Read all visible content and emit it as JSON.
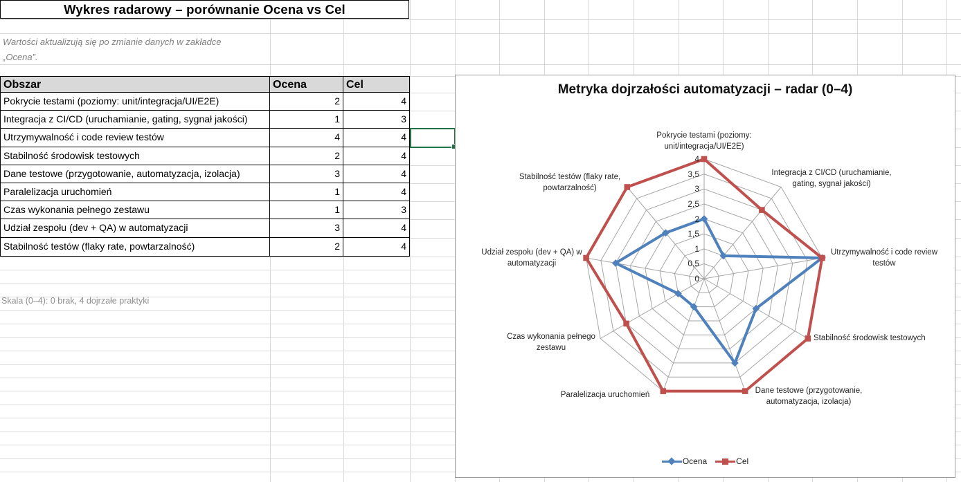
{
  "sheet": {
    "title": "Wykres radarowy – porównanie Ocena vs Cel",
    "note": [
      "Wartości aktualizują się po zmianie danych w zakładce",
      "„Ocena”."
    ],
    "scale_note": "Skala (0–4): 0 brak, 4 dojrzałe praktyki",
    "table": {
      "headers": [
        "Obszar",
        "Ocena",
        "Cel"
      ],
      "rows": [
        [
          "Pokrycie testami (poziomy: unit/integracja/UI/E2E)",
          "2",
          "4"
        ],
        [
          "Integracja z CI/CD (uruchamianie, gating, sygnał jakości)",
          "1",
          "3"
        ],
        [
          "Utrzymywalność i code review testów",
          "4",
          "4"
        ],
        [
          "Stabilność środowisk testowych",
          "2",
          "4"
        ],
        [
          "Dane testowe (przygotowanie, automatyzacja, izolacja)",
          "3",
          "4"
        ],
        [
          "Paralelizacja uruchomień",
          "1",
          "4"
        ],
        [
          "Czas wykonania pełnego zestawu",
          "1",
          "3"
        ],
        [
          "Udział zespołu (dev + QA) w automatyzacji",
          "3",
          "4"
        ],
        [
          "Stabilność testów (flaky rate, powtarzalność)",
          "2",
          "4"
        ]
      ]
    }
  },
  "chart_data": {
    "type": "radar",
    "title": "Metryka dojrzałości automatyzacji – radar (0–4)",
    "categories": [
      "Pokrycie testami (poziomy: unit/integracja/UI/E2E)",
      "Integracja z CI/CD (uruchamianie, gating, sygnał jakości)",
      "Utrzymywalność i code review testów",
      "Stabilność środowisk testowych",
      "Dane testowe (przygotowanie, automatyzacja, izolacja)",
      "Paralelizacja uruchomień",
      "Czas wykonania pełnego zestawu",
      "Udział zespołu (dev + QA) w automatyzacji",
      "Stabilność testów (flaky rate, powtarzalność)"
    ],
    "series": [
      {
        "name": "Ocena",
        "color": "#4F81BD",
        "marker": "diamond",
        "values": [
          2,
          1,
          4,
          2,
          3,
          1,
          1,
          3,
          2
        ]
      },
      {
        "name": "Cel",
        "color": "#C0504D",
        "marker": "square",
        "values": [
          4,
          3,
          4,
          4,
          4,
          4,
          3,
          4,
          4
        ]
      }
    ],
    "rmin": 0,
    "rmax": 4,
    "tick_step": 0.5,
    "tick_labels": [
      "0",
      "0,5",
      "1",
      "1,5",
      "2",
      "2,5",
      "3",
      "3,5",
      "4"
    ],
    "grid": true,
    "legend_position": "bottom"
  }
}
